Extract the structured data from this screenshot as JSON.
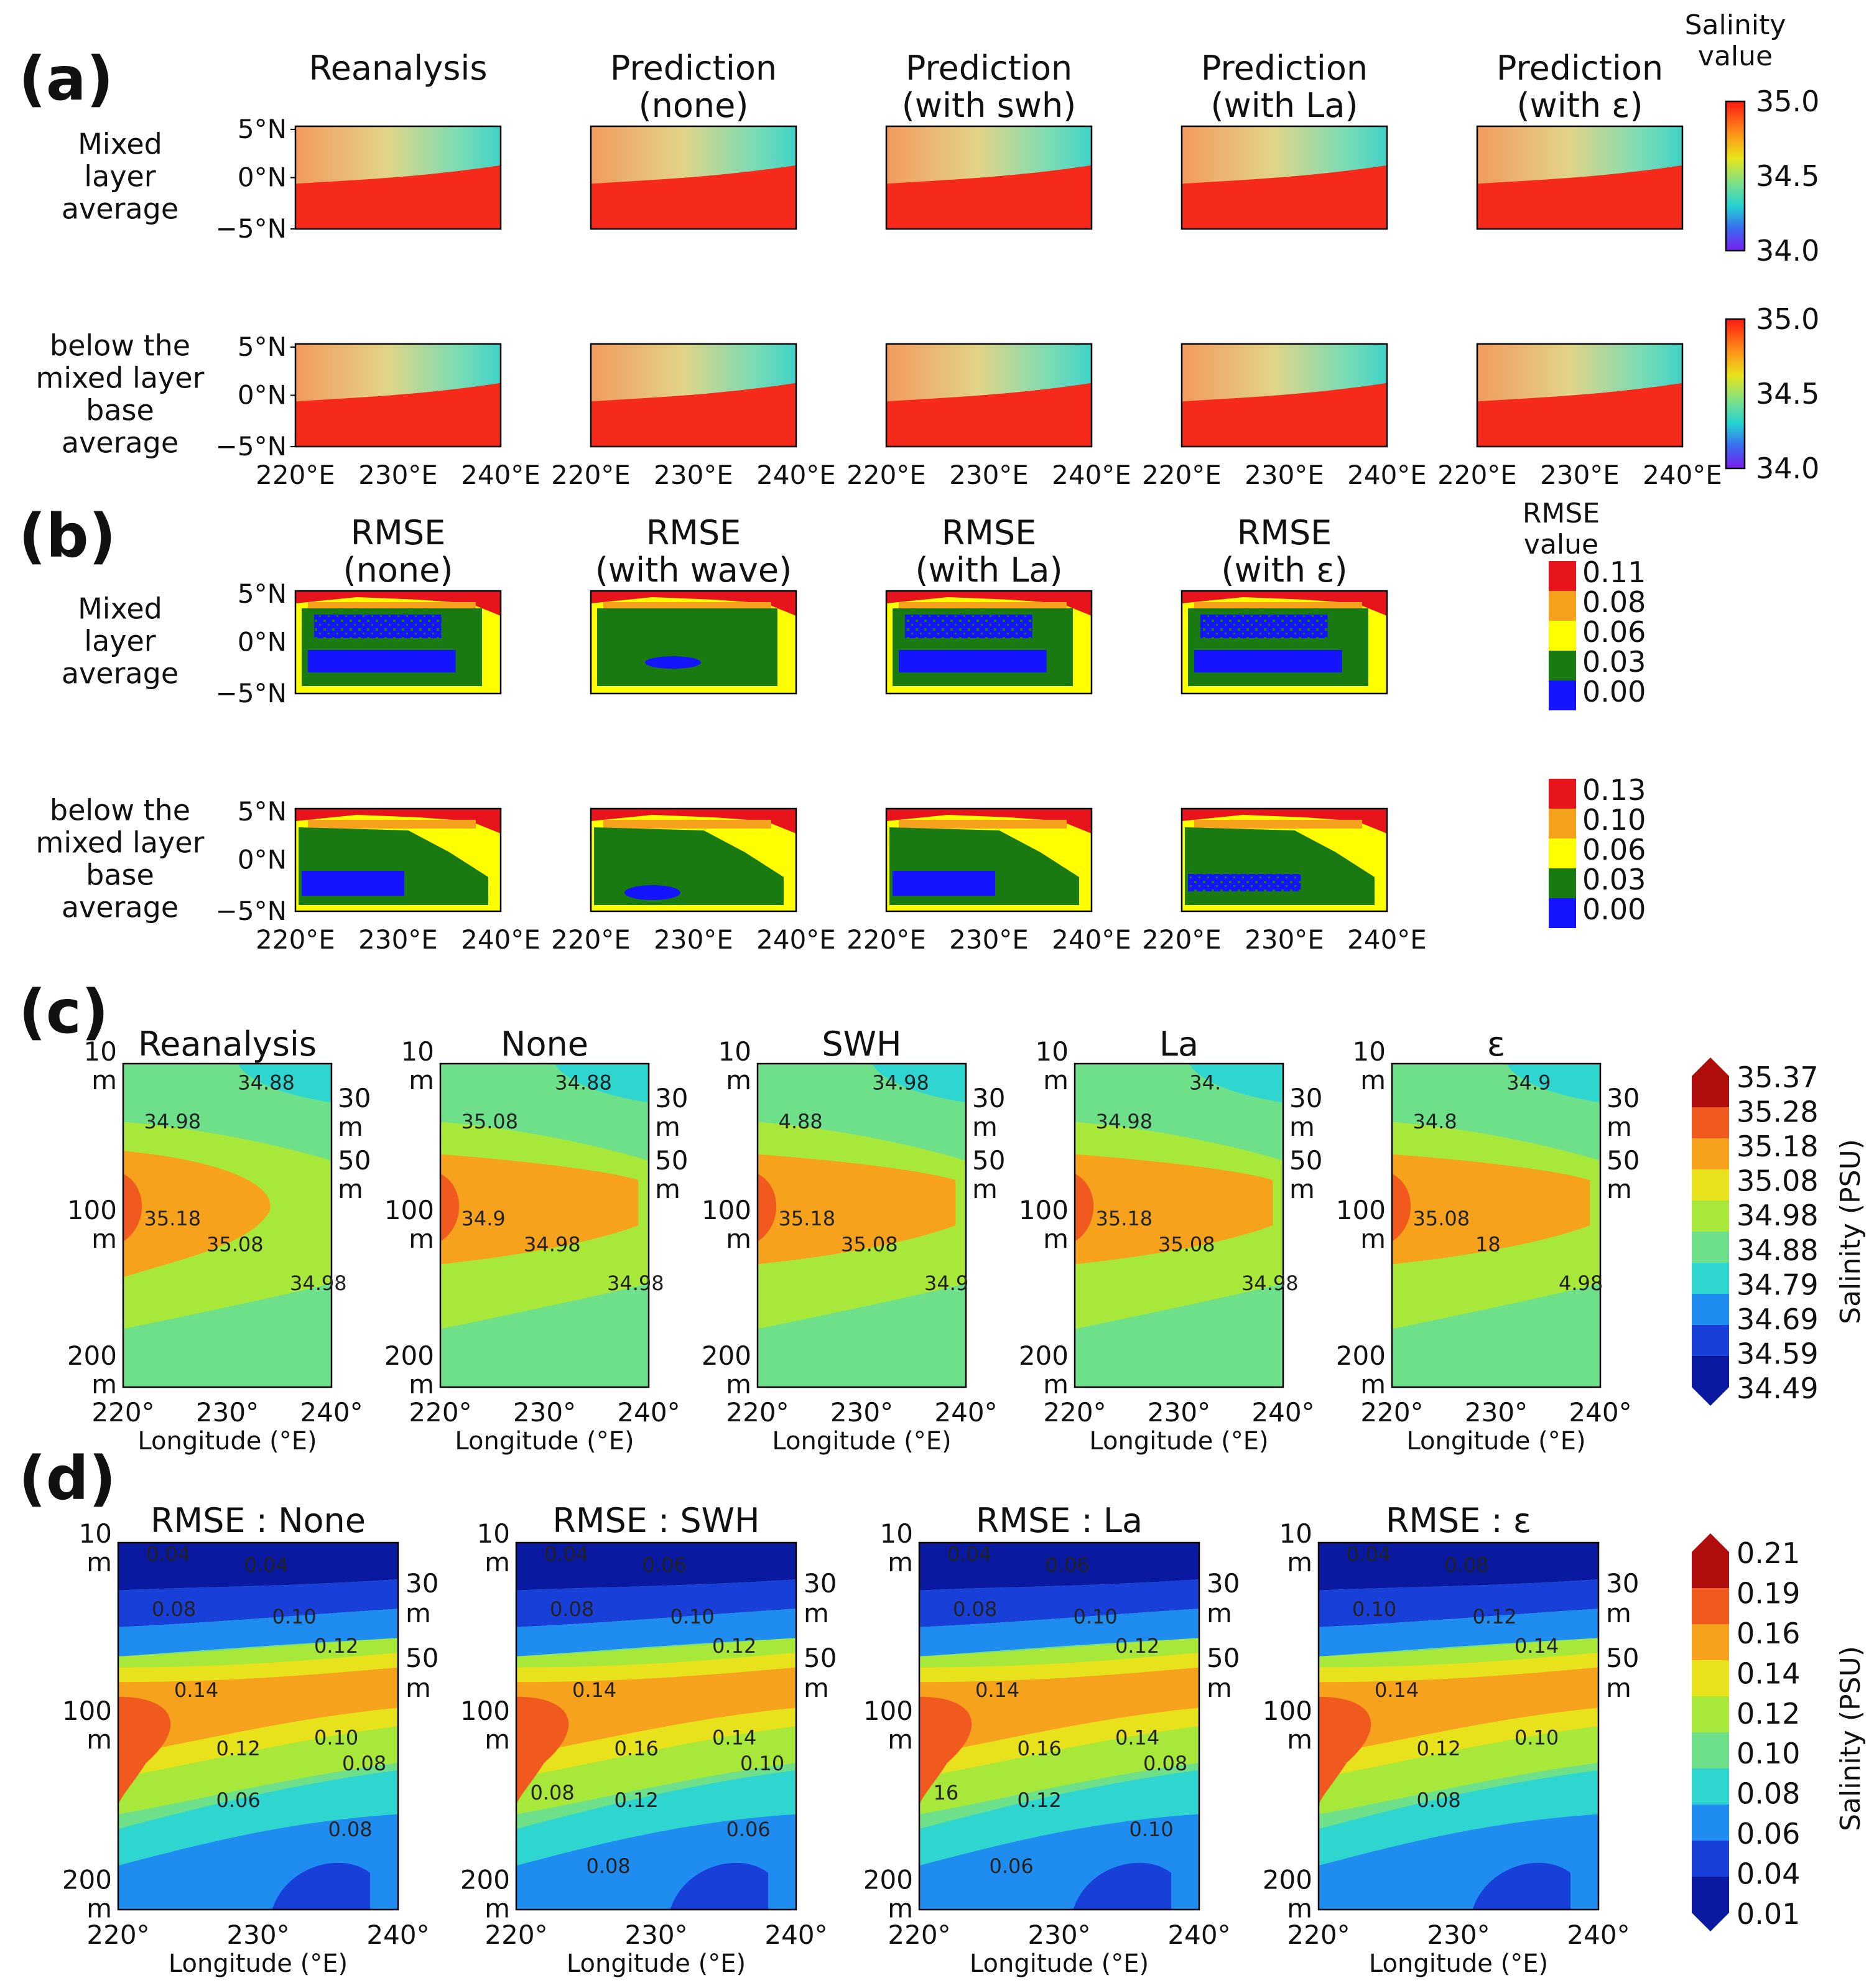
{
  "chart_data": [
    {
      "panel": "(a)",
      "type": "heatmap",
      "columns": [
        "Reanalysis",
        "Prediction\n(none)",
        "Prediction\n(with swh)",
        "Prediction\n(with La)",
        "Prediction\n(with ε)"
      ],
      "rows": [
        "Mixed\nlayer\naverage",
        "below the\nmixed layer\nbase\naverage"
      ],
      "y_ticks": [
        "5°N",
        "0°N",
        "−5°N"
      ],
      "x_ticks": [
        "220°E",
        "230°E",
        "240°E"
      ],
      "colorbar": {
        "title": "Salinity\nvalue",
        "ticks": [
          "35.0",
          "34.5",
          "34.0"
        ],
        "range": [
          34.0,
          35.0
        ],
        "colormap": "rainbow"
      },
      "description_values": {
        "southern_region_salinity": 35.0,
        "northeast_corner_salinity": 34.6
      }
    },
    {
      "panel": "(b)",
      "type": "heatmap",
      "columns": [
        "RMSE\n(none)",
        "RMSE\n(with wave)",
        "RMSE\n(with La)",
        "RMSE\n(with ε)"
      ],
      "rows": [
        "Mixed\nlayer\naverage",
        "below the\nmixed layer\nbase\naverage"
      ],
      "y_ticks": [
        "5°N",
        "0°N",
        "−5°N"
      ],
      "x_ticks": [
        "220°E",
        "230°E",
        "240°E"
      ],
      "colorbars": [
        {
          "title": "RMSE\nvalue",
          "ticks": [
            "0.11",
            "0.08",
            "0.06",
            "0.03",
            "0.00"
          ],
          "colors": [
            "#e8141b",
            "#f7a21c",
            "#ffff00",
            "#1a7a12",
            "#1414ff"
          ]
        },
        {
          "title": "",
          "ticks": [
            "0.13",
            "0.10",
            "0.06",
            "0.03",
            "0.00"
          ],
          "colors": [
            "#e8141b",
            "#f7a21c",
            "#ffff00",
            "#1a7a12",
            "#1414ff"
          ]
        }
      ]
    },
    {
      "panel": "(c)",
      "type": "contour",
      "titles": [
        "Reanalysis",
        "None",
        "SWH",
        "La",
        "ε"
      ],
      "x_ticks": [
        "220°",
        "230°",
        "240°"
      ],
      "xlabel": "Longitude (°E)",
      "y_ticks_left": [
        "10\nm",
        "100\nm",
        "200\nm"
      ],
      "y_ticks_right": [
        "30\nm",
        "50\nm"
      ],
      "contour_labels": [
        [
          "34.88",
          "34.98",
          "35.18",
          "35.08",
          "34.98"
        ],
        [
          "34.88",
          "35.08",
          "34.9",
          "34.98",
          "34.98"
        ],
        [
          "34.98",
          "4.88",
          "35.18",
          "35.08",
          "34.9"
        ],
        [
          "34.",
          "34.98",
          "35.18",
          "35.08",
          "34.98"
        ],
        [
          "34.9",
          "34.8",
          "35.08",
          "18",
          "4.98"
        ]
      ],
      "colorbar": {
        "ticks": [
          "35.37",
          "35.28",
          "35.18",
          "35.08",
          "34.98",
          "34.88",
          "34.79",
          "34.69",
          "34.59",
          "34.49"
        ],
        "label": "Salinity (PSU)",
        "colors": [
          "#b00d0d",
          "#f05a1e",
          "#f7a21c",
          "#e8e21c",
          "#a7e83a",
          "#6fe08a",
          "#2fd6d0",
          "#1f8cf0",
          "#1840d8",
          "#0a1aa0"
        ]
      }
    },
    {
      "panel": "(d)",
      "type": "contour",
      "titles": [
        "RMSE : None",
        "RMSE : SWH",
        "RMSE : La",
        "RMSE : ε"
      ],
      "x_ticks": [
        "220°",
        "230°",
        "240°"
      ],
      "xlabel": "Longitude (°E)",
      "y_ticks_left": [
        "10\nm",
        "100\nm",
        "200\nm"
      ],
      "y_ticks_right": [
        "30\nm",
        "50\nm"
      ],
      "contour_labels": [
        [
          "0.04",
          "0.04",
          "0.08",
          "0.10",
          "0.12",
          "0.14",
          "0.12",
          "0.10",
          "0.06",
          "0.08",
          "0.08"
        ],
        [
          "0.04",
          "0.06",
          "0.08",
          "0.10",
          "0.12",
          "0.14",
          "0.16",
          "0.14",
          "0.12",
          "0.10",
          "0.06",
          "0.08",
          "0.08"
        ],
        [
          "0.04",
          "0.06",
          "0.08",
          "0.10",
          "0.12",
          "0.14",
          "0.16",
          "0.14",
          "0.12",
          "0.08",
          "0.10",
          "0.06",
          "16"
        ],
        [
          "0.04",
          "0.08",
          "0.10",
          "0.12",
          "0.14",
          "0.14",
          "0.12",
          "0.10",
          "0.08"
        ]
      ],
      "colorbar": {
        "ticks": [
          "0.21",
          "0.19",
          "0.16",
          "0.14",
          "0.12",
          "0.10",
          "0.08",
          "0.06",
          "0.04",
          "0.01"
        ],
        "label": "Salinity (PSU)",
        "colors": [
          "#b00d0d",
          "#f05a1e",
          "#f7a21c",
          "#e8e21c",
          "#a7e83a",
          "#6fe08a",
          "#2fd6d0",
          "#1f8cf0",
          "#1840d8",
          "#0a1aa0"
        ]
      }
    }
  ],
  "colors": {
    "sal_red": "#f52a1a",
    "sal_orange": "#f7a040",
    "sal_yellow": "#e6d870",
    "sal_cyan": "#4fd6c0",
    "rmse_blue": "#1414ff",
    "rmse_green": "#1a7a12",
    "rmse_yellow": "#ffff00",
    "rmse_orange": "#f7a21c",
    "rmse_red": "#e8141b"
  }
}
